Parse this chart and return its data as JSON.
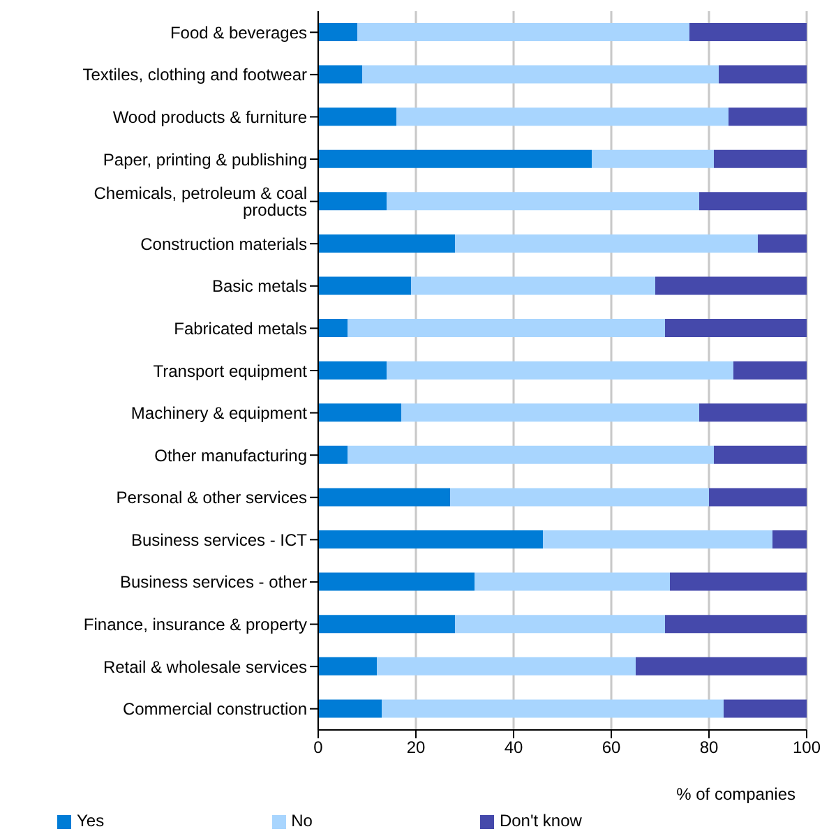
{
  "chart_data": {
    "type": "bar",
    "orientation": "horizontal",
    "stacked": true,
    "xlabel": "% of companies",
    "categories": [
      "Food & beverages",
      "Textiles, clothing and footwear",
      "Wood products & furniture",
      "Paper, printing & publishing",
      "Chemicals, petroleum & coal products",
      "Construction materials",
      "Basic metals",
      "Fabricated metals",
      "Transport equipment",
      "Machinery & equipment",
      "Other manufacturing",
      "Personal & other services",
      "Business services   - ICT",
      "Business services   - other",
      "Finance, insurance & property",
      "Retail & wholesale services",
      "Commercial construction"
    ],
    "series": [
      {
        "name": "Yes",
        "color": "#007cd6",
        "values": [
          8,
          9,
          16,
          56,
          14,
          28,
          19,
          6,
          14,
          17,
          6,
          27,
          46,
          32,
          28,
          12,
          13
        ]
      },
      {
        "name": "No",
        "color": "#a8d5fe",
        "values": [
          68,
          73,
          68,
          25,
          64,
          62,
          50,
          65,
          71,
          61,
          75,
          53,
          47,
          40,
          43,
          53,
          70
        ]
      },
      {
        "name": "Don't know",
        "color": "#4549ab",
        "values": [
          24,
          18,
          16,
          19,
          22,
          10,
          31,
          29,
          15,
          22,
          19,
          20,
          7,
          28,
          29,
          35,
          17
        ]
      }
    ],
    "xlim": [
      0,
      100
    ],
    "xticks": [
      0,
      20,
      40,
      60,
      80,
      100
    ],
    "grid": "x",
    "legend": "bottom"
  }
}
